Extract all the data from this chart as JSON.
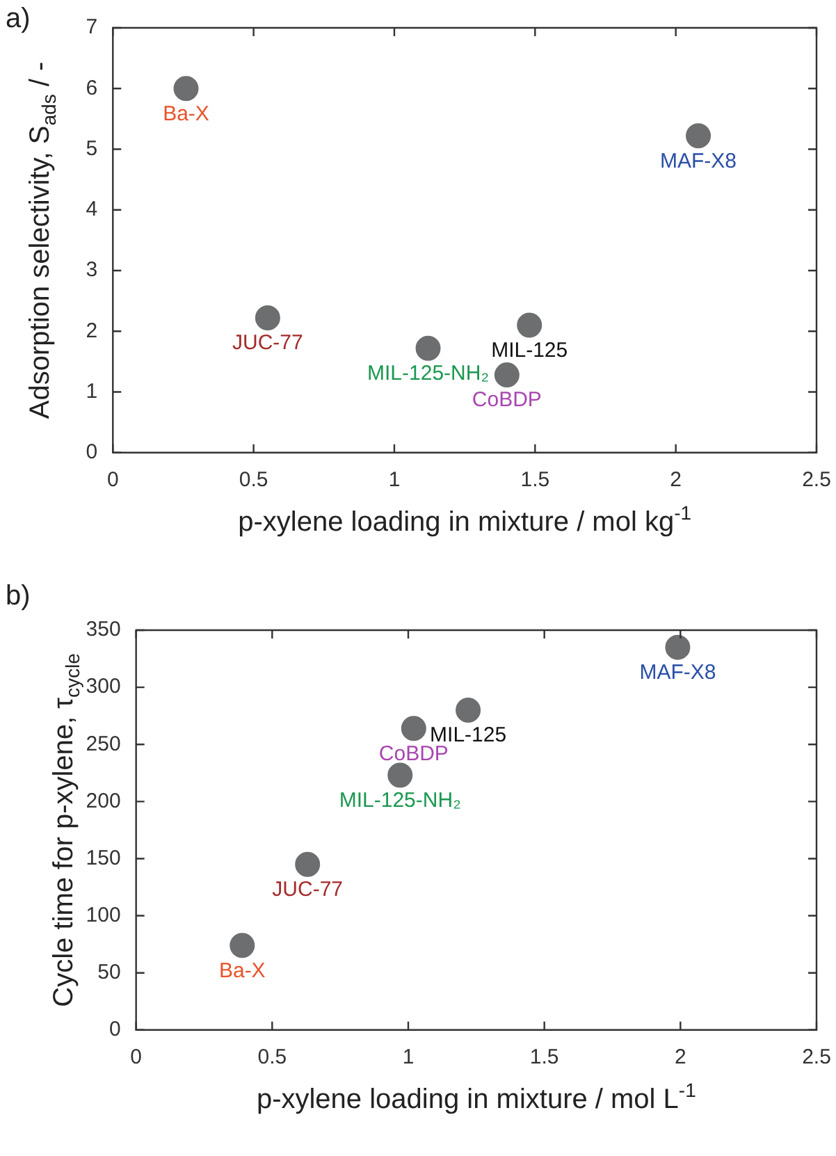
{
  "chart_data": [
    {
      "type": "scatter",
      "title": "a)",
      "xlabel": "p-xylene loading in mixture / mol kg$^{-1}$",
      "ylabel": "Adsorption selectivity, S$_{ads}$ / -",
      "marker": "circle",
      "grid": false,
      "legend": false,
      "xlim": [
        0,
        2.5
      ],
      "xticks": [
        0,
        0.5,
        1,
        1.5,
        2,
        2.5
      ],
      "ylim": [
        0,
        7
      ],
      "yticks": [
        0,
        1,
        2,
        3,
        4,
        5,
        6,
        7
      ],
      "series": [
        {
          "color": "#6d6e70",
          "x": [
            0.26,
            0.55,
            1.12,
            1.48,
            1.4,
            2.08
          ],
          "values": [
            6.0,
            2.22,
            1.72,
            2.1,
            1.28,
            5.22
          ]
        }
      ],
      "annotations": [
        {
          "text": "Ba-X",
          "x": 0.26,
          "y": 6.0
        },
        {
          "text": "JUC-77",
          "x": 0.55,
          "y": 2.22
        },
        {
          "text": "MIL-125-NH₂",
          "x": 1.12,
          "y": 1.72
        },
        {
          "text": "MIL-125",
          "x": 1.48,
          "y": 2.1
        },
        {
          "text": "CoBDP",
          "x": 1.4,
          "y": 1.28
        },
        {
          "text": "MAF-X8",
          "x": 2.08,
          "y": 5.22
        }
      ]
    },
    {
      "type": "scatter",
      "title": "b)",
      "xlabel": "p-xylene loading in mixture / mol L$^{-1}$",
      "ylabel": "Cycle time for p-xylene, τ$_{cycle}$",
      "marker": "circle",
      "grid": false,
      "legend": false,
      "xlim": [
        0,
        2.5
      ],
      "xticks": [
        0,
        0.5,
        1,
        1.5,
        2,
        2.5
      ],
      "ylim": [
        0,
        350
      ],
      "yticks": [
        0,
        50,
        100,
        150,
        200,
        250,
        300,
        350
      ],
      "series": [
        {
          "color": "#6d6e70",
          "x": [
            0.39,
            0.63,
            0.97,
            1.02,
            1.22,
            1.99
          ],
          "values": [
            74,
            145,
            223,
            264,
            280,
            335
          ]
        }
      ],
      "annotations": [
        {
          "text": "Ba-X",
          "x": 0.39,
          "y": 74
        },
        {
          "text": "JUC-77",
          "x": 0.63,
          "y": 145
        },
        {
          "text": "MIL-125-NH₂",
          "x": 0.97,
          "y": 223
        },
        {
          "text": "MIL-125",
          "x": 1.22,
          "y": 280
        },
        {
          "text": "CoBDP",
          "x": 1.02,
          "y": 264
        },
        {
          "text": "MAF-X8",
          "x": 1.99,
          "y": 335
        }
      ]
    }
  ]
}
